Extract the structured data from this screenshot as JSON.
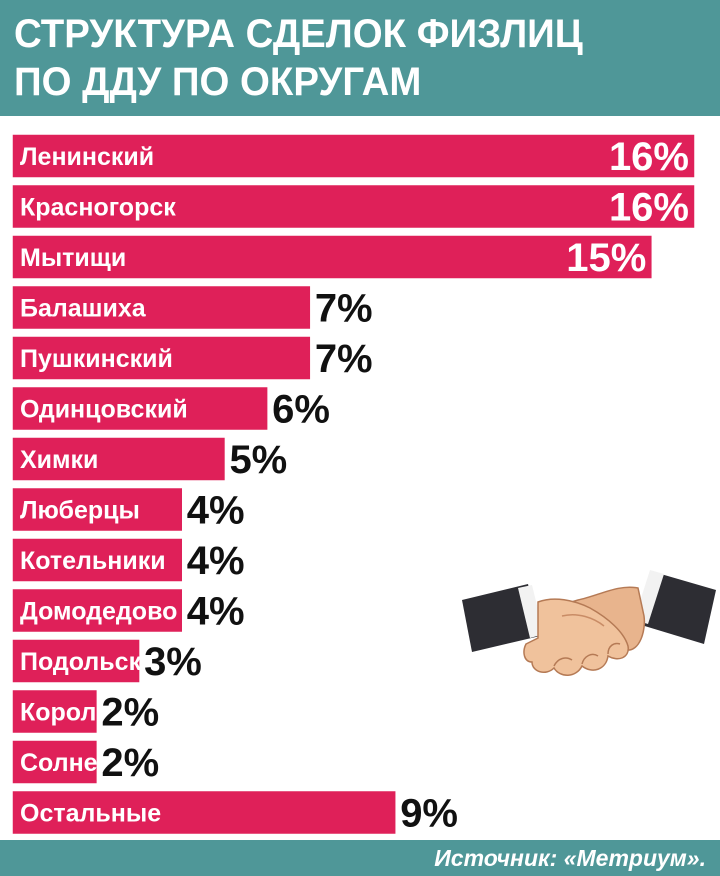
{
  "header": {
    "title_line1": "СТРУКТУРА СДЕЛОК ФИЗЛИЦ",
    "title_line2": "ПО ДДУ ПО ОКРУГАМ"
  },
  "chart_data": {
    "type": "bar",
    "orientation": "horizontal",
    "title": "СТРУКТУРА СДЕЛОК ФИЗЛИЦ ПО ДДУ ПО ОКРУГАМ",
    "xlabel": "",
    "ylabel": "",
    "unit": "%",
    "xlim": [
      0,
      16
    ],
    "grid": false,
    "legend": "none",
    "categories": [
      "Ленинский",
      "Красногорск",
      "Мытищи",
      "Балашиха",
      "Пушкинский",
      "Одинцовский",
      "Химки",
      "Люберцы",
      "Котельники",
      "Домодедово",
      "Подольск",
      "Королев",
      "Солнечногорск",
      "Остальные"
    ],
    "values": [
      16,
      16,
      15,
      7,
      7,
      6,
      5,
      4,
      4,
      4,
      3,
      2,
      2,
      9
    ],
    "value_labels": [
      "16%",
      "16%",
      "15%",
      "7%",
      "7%",
      "6%",
      "5%",
      "4%",
      "4%",
      "4%",
      "3%",
      "2%",
      "2%",
      "9%"
    ],
    "bar_color": "#df2059"
  },
  "decoration": {
    "icon": "handshake-icon"
  },
  "footer": {
    "source": "Источник: «Метриум»."
  },
  "colors": {
    "header_bg": "#4f9798",
    "bar": "#df2059",
    "label_text": "#ffffff",
    "value_text": "#111111"
  }
}
